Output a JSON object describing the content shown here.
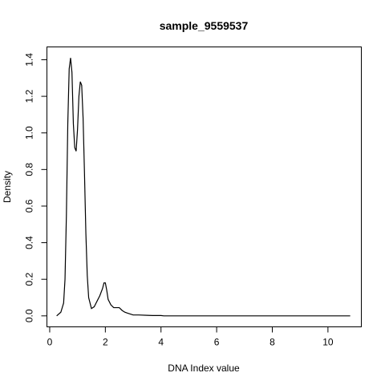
{
  "chart_data": {
    "type": "line",
    "title": "sample_9559537",
    "xlabel": "DNA Index value",
    "ylabel": "Density",
    "xlim": [
      -0.1,
      11.2
    ],
    "ylim": [
      -0.06,
      1.47
    ],
    "x_ticks": [
      0,
      2,
      4,
      6,
      8,
      10
    ],
    "x_tick_labels": [
      "0",
      "2",
      "4",
      "6",
      "8",
      "10"
    ],
    "y_ticks": [
      0.0,
      0.2,
      0.4,
      0.6,
      0.8,
      1.0,
      1.2,
      1.4
    ],
    "y_tick_labels": [
      "0.0",
      "0.2",
      "0.4",
      "0.6",
      "0.8",
      "1.0",
      "1.2",
      "1.4"
    ],
    "grid": false,
    "line_color": "#000000",
    "series": [
      {
        "x": [
          0.25,
          0.4,
          0.5,
          0.55,
          0.6,
          0.65,
          0.7,
          0.75,
          0.8,
          0.85,
          0.9,
          0.95,
          1.0,
          1.05,
          1.1,
          1.15,
          1.2,
          1.25,
          1.3,
          1.35,
          1.4,
          1.5,
          1.6,
          1.7,
          1.8,
          1.9,
          1.95,
          2.0,
          2.05,
          2.1,
          2.2,
          2.3,
          2.5,
          2.6,
          2.7,
          2.8,
          2.9,
          3.0,
          3.2,
          3.5,
          3.7,
          3.9,
          4.0,
          4.1,
          4.5,
          5.0,
          6.0,
          7.0,
          8.0,
          9.0,
          10.0,
          10.8
        ],
        "y": [
          0.0,
          0.02,
          0.07,
          0.2,
          0.55,
          1.05,
          1.35,
          1.41,
          1.33,
          1.05,
          0.92,
          0.9,
          1.02,
          1.2,
          1.28,
          1.26,
          1.08,
          0.78,
          0.45,
          0.22,
          0.1,
          0.04,
          0.05,
          0.08,
          0.11,
          0.15,
          0.18,
          0.18,
          0.14,
          0.09,
          0.06,
          0.045,
          0.045,
          0.03,
          0.02,
          0.015,
          0.01,
          0.005,
          0.005,
          0.003,
          0.002,
          0.002,
          0.002,
          0.0,
          0.0,
          0.0,
          0.0,
          0.0,
          0.0,
          0.0,
          0.0,
          0.0
        ]
      }
    ]
  }
}
